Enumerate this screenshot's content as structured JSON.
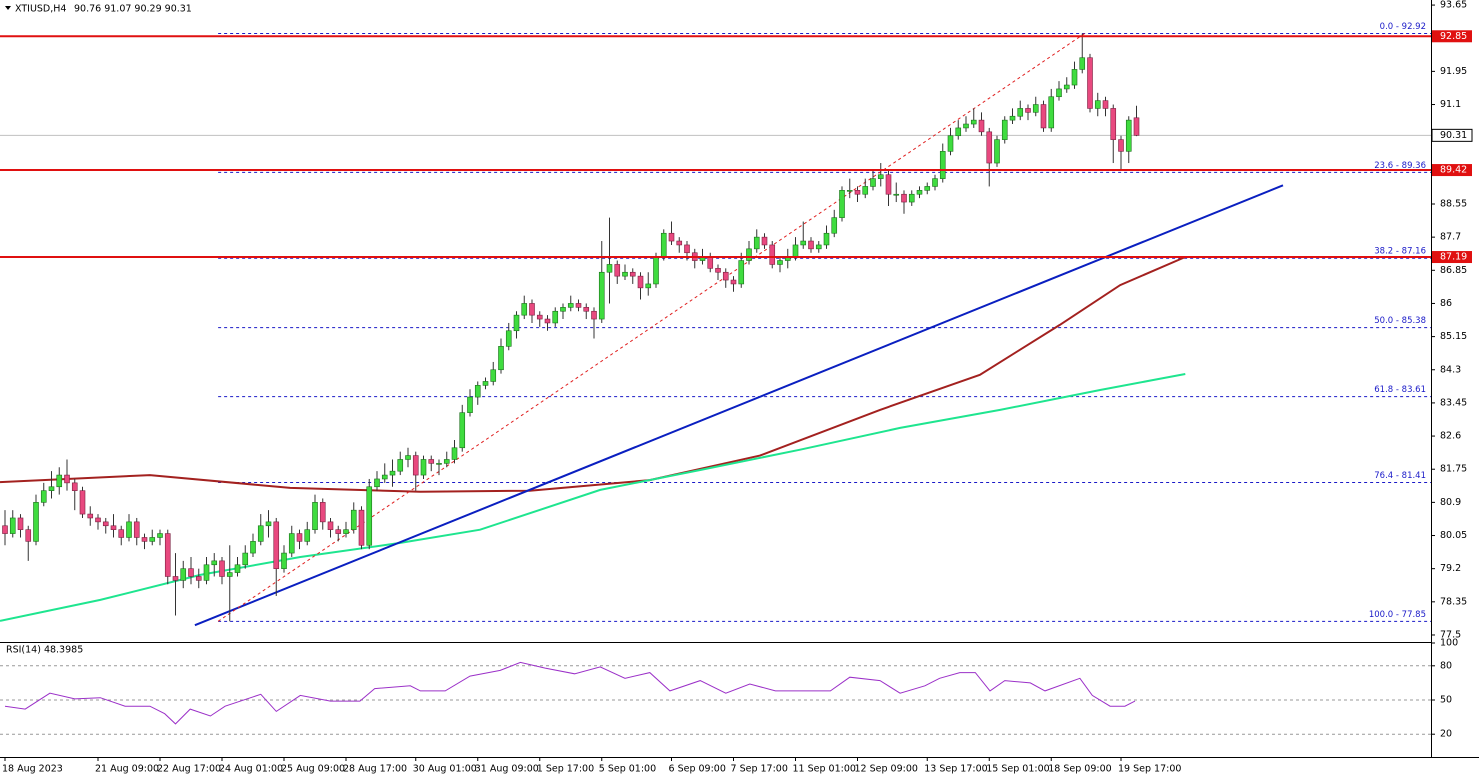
{
  "chart_data": {
    "type": "candlestick",
    "symbol": "XTIUSD,H4",
    "ohlc_text": "90.76 91.07 90.29 90.31",
    "ylim": [
      77.32,
      93.78
    ],
    "yticks": [
      93.65,
      91.95,
      91.1,
      88.55,
      87.7,
      86.85,
      86.0,
      85.15,
      84.3,
      83.45,
      82.6,
      81.75,
      80.9,
      80.05,
      79.2,
      78.35,
      77.5
    ],
    "bull_color": "#3fdc3f",
    "bear_color": "#e8497f",
    "xticks": [
      {
        "value": 0,
        "label": "18 Aug 2023"
      },
      {
        "value": 12,
        "label": "21 Aug 09:00"
      },
      {
        "value": 20,
        "label": "22 Aug 17:00"
      },
      {
        "value": 28,
        "label": "24 Aug 01:00"
      },
      {
        "value": 36,
        "label": "25 Aug 09:00"
      },
      {
        "value": 44,
        "label": "28 Aug 17:00"
      },
      {
        "value": 53,
        "label": "30 Aug 01:00"
      },
      {
        "value": 61,
        "label": "31 Aug 09:00"
      },
      {
        "value": 69,
        "label": "1 Sep 17:00"
      },
      {
        "value": 77,
        "label": "5 Sep 01:00"
      },
      {
        "value": 86,
        "label": "6 Sep 09:00"
      },
      {
        "value": 94,
        "label": "7 Sep 17:00"
      },
      {
        "value": 102,
        "label": "11 Sep 01:00"
      },
      {
        "value": 110,
        "label": "12 Sep 09:00"
      },
      {
        "value": 119,
        "label": "13 Sep 17:00"
      },
      {
        "value": 127,
        "label": "15 Sep 01:00"
      },
      {
        "value": 135,
        "label": "18 Sep 09:00"
      },
      {
        "value": 144,
        "label": "19 Sep 17:00"
      }
    ],
    "candles": [
      [
        80.3,
        80.7,
        79.8,
        80.1
      ],
      [
        80.1,
        80.7,
        80.0,
        80.5
      ],
      [
        80.5,
        80.6,
        80.0,
        80.2
      ],
      [
        80.2,
        80.3,
        79.4,
        79.9
      ],
      [
        79.9,
        81.1,
        79.8,
        80.9
      ],
      [
        80.9,
        81.4,
        80.8,
        81.2
      ],
      [
        81.2,
        81.7,
        81.0,
        81.3
      ],
      [
        81.3,
        81.8,
        81.1,
        81.6
      ],
      [
        81.6,
        82.0,
        81.2,
        81.4
      ],
      [
        81.4,
        81.5,
        80.7,
        81.2
      ],
      [
        81.2,
        81.3,
        80.5,
        80.6
      ],
      [
        80.6,
        80.8,
        80.3,
        80.5
      ],
      [
        80.5,
        80.6,
        80.2,
        80.4
      ],
      [
        80.4,
        80.5,
        80.1,
        80.3
      ],
      [
        80.3,
        80.6,
        80.0,
        80.2
      ],
      [
        80.2,
        80.3,
        79.8,
        80.0
      ],
      [
        80.0,
        80.6,
        79.9,
        80.4
      ],
      [
        80.4,
        80.5,
        79.8,
        80.0
      ],
      [
        80.0,
        80.1,
        79.7,
        79.9
      ],
      [
        79.9,
        80.2,
        79.8,
        80.0
      ],
      [
        80.0,
        80.2,
        79.8,
        80.1
      ],
      [
        80.1,
        80.2,
        78.8,
        79.0
      ],
      [
        79.0,
        79.6,
        78.0,
        78.9
      ],
      [
        78.9,
        79.4,
        78.7,
        79.2
      ],
      [
        79.2,
        79.5,
        78.8,
        79.0
      ],
      [
        79.0,
        79.2,
        78.7,
        78.9
      ],
      [
        78.9,
        79.5,
        78.8,
        79.3
      ],
      [
        79.3,
        79.6,
        79.0,
        79.4
      ],
      [
        79.4,
        79.5,
        78.8,
        79.0
      ],
      [
        79.0,
        79.8,
        77.85,
        79.1
      ],
      [
        79.1,
        79.5,
        79.0,
        79.3
      ],
      [
        79.3,
        79.8,
        79.2,
        79.6
      ],
      [
        79.6,
        80.1,
        79.5,
        79.9
      ],
      [
        79.9,
        80.6,
        79.8,
        80.3
      ],
      [
        80.3,
        80.7,
        80.0,
        80.4
      ],
      [
        80.4,
        80.5,
        78.5,
        79.2
      ],
      [
        79.2,
        79.8,
        79.1,
        79.6
      ],
      [
        79.6,
        80.3,
        79.5,
        80.1
      ],
      [
        80.1,
        80.2,
        79.7,
        79.9
      ],
      [
        79.9,
        80.4,
        79.8,
        80.2
      ],
      [
        80.2,
        81.1,
        80.1,
        80.9
      ],
      [
        80.9,
        81.0,
        80.2,
        80.4
      ],
      [
        80.4,
        80.5,
        80.0,
        80.2
      ],
      [
        80.2,
        80.3,
        79.9,
        80.1
      ],
      [
        80.1,
        80.4,
        80.0,
        80.2
      ],
      [
        80.2,
        80.9,
        80.1,
        80.7
      ],
      [
        80.7,
        80.8,
        79.7,
        79.8
      ],
      [
        79.8,
        81.5,
        79.7,
        81.3
      ],
      [
        81.3,
        81.7,
        81.2,
        81.5
      ],
      [
        81.5,
        81.9,
        81.4,
        81.6
      ],
      [
        81.6,
        82.0,
        81.3,
        81.7
      ],
      [
        81.7,
        82.2,
        81.6,
        82.0
      ],
      [
        82.0,
        82.3,
        81.8,
        82.1
      ],
      [
        82.1,
        82.2,
        81.2,
        81.6
      ],
      [
        81.6,
        82.1,
        81.5,
        82.0
      ],
      [
        82.0,
        82.1,
        81.7,
        81.9
      ],
      [
        81.9,
        82.0,
        81.6,
        81.9
      ],
      [
        81.9,
        82.2,
        81.8,
        82.0
      ],
      [
        82.0,
        82.5,
        81.9,
        82.3
      ],
      [
        82.3,
        83.4,
        82.2,
        83.2
      ],
      [
        83.2,
        83.8,
        83.1,
        83.6
      ],
      [
        83.6,
        84.0,
        83.4,
        83.9
      ],
      [
        83.9,
        84.1,
        83.8,
        84.0
      ],
      [
        84.0,
        84.5,
        83.9,
        84.3
      ],
      [
        84.3,
        85.1,
        84.2,
        84.9
      ],
      [
        84.9,
        85.5,
        84.8,
        85.3
      ],
      [
        85.3,
        85.8,
        85.1,
        85.7
      ],
      [
        85.7,
        86.2,
        85.6,
        86.0
      ],
      [
        86.0,
        86.1,
        85.5,
        85.7
      ],
      [
        85.7,
        85.8,
        85.4,
        85.6
      ],
      [
        85.6,
        85.7,
        85.3,
        85.5
      ],
      [
        85.5,
        85.9,
        85.4,
        85.8
      ],
      [
        85.8,
        86.0,
        85.6,
        85.9
      ],
      [
        85.9,
        86.2,
        85.8,
        86.0
      ],
      [
        86.0,
        86.1,
        85.8,
        85.9
      ],
      [
        85.9,
        86.0,
        85.6,
        85.8
      ],
      [
        85.8,
        85.9,
        85.1,
        85.6
      ],
      [
        85.6,
        87.6,
        85.5,
        86.8
      ],
      [
        86.8,
        88.2,
        86.0,
        87.0
      ],
      [
        87.0,
        87.1,
        86.5,
        86.7
      ],
      [
        86.7,
        87.0,
        86.6,
        86.8
      ],
      [
        86.8,
        86.9,
        86.5,
        86.7
      ],
      [
        86.7,
        86.8,
        86.1,
        86.4
      ],
      [
        86.4,
        86.8,
        86.2,
        86.5
      ],
      [
        86.5,
        87.3,
        86.4,
        87.2
      ],
      [
        87.2,
        87.9,
        87.1,
        87.8
      ],
      [
        87.8,
        88.1,
        87.5,
        87.6
      ],
      [
        87.6,
        87.7,
        87.3,
        87.5
      ],
      [
        87.5,
        87.6,
        87.1,
        87.3
      ],
      [
        87.3,
        87.4,
        86.9,
        87.1
      ],
      [
        87.1,
        87.4,
        87.0,
        87.2
      ],
      [
        87.2,
        87.3,
        86.8,
        86.9
      ],
      [
        86.9,
        87.0,
        86.6,
        86.8
      ],
      [
        86.8,
        86.9,
        86.4,
        86.6
      ],
      [
        86.6,
        86.7,
        86.3,
        86.5
      ],
      [
        86.5,
        87.3,
        86.4,
        87.1
      ],
      [
        87.1,
        87.6,
        87.0,
        87.4
      ],
      [
        87.4,
        87.9,
        87.3,
        87.7
      ],
      [
        87.7,
        87.8,
        87.4,
        87.5
      ],
      [
        87.5,
        87.6,
        86.9,
        87.0
      ],
      [
        87.0,
        87.2,
        86.8,
        87.1
      ],
      [
        87.1,
        87.4,
        86.9,
        87.2
      ],
      [
        87.2,
        87.7,
        87.1,
        87.5
      ],
      [
        87.5,
        88.1,
        87.4,
        87.6
      ],
      [
        87.6,
        87.7,
        87.3,
        87.4
      ],
      [
        87.4,
        87.6,
        87.3,
        87.5
      ],
      [
        87.5,
        88.0,
        87.4,
        87.8
      ],
      [
        87.8,
        88.4,
        87.7,
        88.2
      ],
      [
        88.2,
        89.0,
        88.1,
        88.9
      ],
      [
        88.9,
        89.2,
        88.7,
        88.9
      ],
      [
        88.9,
        89.0,
        88.6,
        88.8
      ],
      [
        88.8,
        89.2,
        88.7,
        89.0
      ],
      [
        89.0,
        89.4,
        88.9,
        89.2
      ],
      [
        89.2,
        89.6,
        89.0,
        89.3
      ],
      [
        89.3,
        89.4,
        88.5,
        88.8
      ],
      [
        88.8,
        89.1,
        88.6,
        88.8
      ],
      [
        88.8,
        88.9,
        88.3,
        88.6
      ],
      [
        88.6,
        88.9,
        88.5,
        88.8
      ],
      [
        88.8,
        89.0,
        88.7,
        88.9
      ],
      [
        88.9,
        89.1,
        88.8,
        89.0
      ],
      [
        89.0,
        89.3,
        88.9,
        89.2
      ],
      [
        89.2,
        90.1,
        89.1,
        89.9
      ],
      [
        89.9,
        90.5,
        89.8,
        90.3
      ],
      [
        90.3,
        90.7,
        90.2,
        90.5
      ],
      [
        90.5,
        90.8,
        90.4,
        90.6
      ],
      [
        90.6,
        91.0,
        90.5,
        90.7
      ],
      [
        90.7,
        90.9,
        90.3,
        90.4
      ],
      [
        90.4,
        90.5,
        89.0,
        89.6
      ],
      [
        89.6,
        90.3,
        89.5,
        90.2
      ],
      [
        90.2,
        90.8,
        90.1,
        90.7
      ],
      [
        90.7,
        91.0,
        90.6,
        90.8
      ],
      [
        90.8,
        91.2,
        90.7,
        91.0
      ],
      [
        91.0,
        91.1,
        90.7,
        90.9
      ],
      [
        90.9,
        91.3,
        90.8,
        91.1
      ],
      [
        91.1,
        91.2,
        90.4,
        90.5
      ],
      [
        90.5,
        91.5,
        90.4,
        91.3
      ],
      [
        91.3,
        91.7,
        91.2,
        91.5
      ],
      [
        91.5,
        91.8,
        91.4,
        91.6
      ],
      [
        91.6,
        92.2,
        91.5,
        92.0
      ],
      [
        92.0,
        92.92,
        91.9,
        92.3
      ],
      [
        92.3,
        92.4,
        90.9,
        91.0
      ],
      [
        91.0,
        91.4,
        90.8,
        91.2
      ],
      [
        91.2,
        91.3,
        90.8,
        91.0
      ],
      [
        91.0,
        91.1,
        89.6,
        90.2
      ],
      [
        90.2,
        90.3,
        89.4,
        89.9
      ],
      [
        89.9,
        90.8,
        89.6,
        90.7
      ],
      [
        90.76,
        91.07,
        90.29,
        90.31
      ]
    ],
    "series": [
      {
        "color": "#a3211f",
        "x": [
          -0.65,
          18.7,
          36.8,
          53.6,
          67.7,
          83.2,
          97.4,
          112.9,
          125.8,
          136.1,
          143.9,
          152.3
        ],
        "values": [
          81.42,
          81.6,
          81.27,
          81.17,
          81.2,
          81.47,
          82.1,
          83.27,
          84.17,
          85.45,
          86.47,
          87.19
        ]
      },
      {
        "color": "#1ee58f",
        "x": [
          -0.65,
          12.3,
          25.2,
          38.1,
          51,
          61.3,
          76.8,
          89.7,
          102.6,
          115.5,
          128.4,
          141.3,
          152.3
        ],
        "values": [
          77.86,
          78.4,
          79.04,
          79.5,
          79.86,
          80.2,
          81.22,
          81.73,
          82.25,
          82.81,
          83.27,
          83.78,
          84.19
        ]
      }
    ],
    "trendlines": [
      {
        "color": "#0a1fc0",
        "style": "solid",
        "x": [
          24.5,
          164.9
        ],
        "values": [
          77.75,
          89.03
        ]
      },
      {
        "color": "#e02020",
        "style": "dashed",
        "x": [
          27.5,
          139.3
        ],
        "values": [
          77.85,
          92.92
        ]
      }
    ],
    "levels": [
      {
        "value": 92.85,
        "color": "#e01010"
      },
      {
        "value": 89.42,
        "color": "#e01010"
      },
      {
        "value": 87.19,
        "color": "#e01010"
      }
    ],
    "current": {
      "value": 90.31,
      "color": "#c0c0c0"
    },
    "fib_start": 27.5,
    "fib_color": "#1a1ac8",
    "fib": [
      {
        "value": 92.92,
        "label": "0.0 - 92.92"
      },
      {
        "value": 89.36,
        "label": "23.6 - 89.36"
      },
      {
        "value": 87.16,
        "label": "38.2 - 87.16"
      },
      {
        "value": 85.38,
        "label": "50.0 - 85.38"
      },
      {
        "value": 83.61,
        "label": "61.8 - 83.61"
      },
      {
        "value": 81.41,
        "label": "76.4 - 81.41"
      },
      {
        "value": 77.85,
        "label": "100.0 - 77.85"
      }
    ],
    "rsi": {
      "label": "RSI(14) 48.3985",
      "color": "#9b30c8",
      "ylim": [
        0,
        100
      ],
      "yticks": [
        100,
        80,
        50,
        20
      ],
      "levels": [
        80,
        50,
        20
      ],
      "x": [
        0,
        2.6,
        5.8,
        9,
        12.3,
        15.5,
        18.7,
        20.6,
        22,
        23.9,
        26.5,
        28.4,
        33,
        35,
        38.1,
        42,
        45.8,
        47.7,
        52.3,
        53.6,
        56.8,
        60,
        63.9,
        66.5,
        69.7,
        73.5,
        76.8,
        80,
        83.2,
        85.8,
        89.7,
        93,
        96.1,
        99.4,
        102.6,
        106.5,
        109,
        112.9,
        115.5,
        118.7,
        120.6,
        123.2,
        125.2,
        127.1,
        129,
        132.3,
        134.2,
        138.7,
        140.3,
        142.6,
        144.5,
        145.8
      ],
      "values": [
        44.6,
        42,
        56,
        51,
        52,
        44.6,
        44.6,
        38,
        29,
        42,
        36,
        44.6,
        55,
        40,
        54,
        49,
        49,
        60,
        62.5,
        58,
        58,
        71,
        76,
        83,
        78,
        73,
        79,
        69,
        74,
        58,
        67,
        56,
        64,
        58,
        58,
        58,
        70,
        67,
        56,
        62.5,
        69,
        74,
        74,
        58,
        67,
        65,
        58,
        69,
        54,
        44.6,
        44.6,
        49
      ]
    }
  }
}
